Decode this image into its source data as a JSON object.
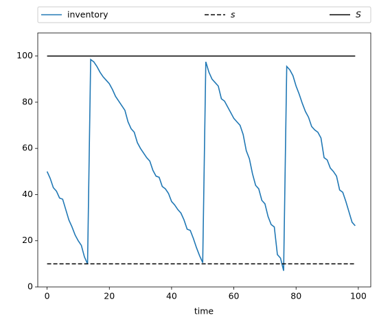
{
  "chart_data": {
    "type": "line",
    "xlabel": "time",
    "series": [
      {
        "name": "inventory",
        "color": "#1f77b4",
        "linestyle": "solid",
        "x": [
          0,
          1,
          2,
          3,
          4,
          5,
          6,
          7,
          8,
          9,
          10,
          11,
          12,
          13,
          14,
          15,
          16,
          17,
          18,
          19,
          20,
          21,
          22,
          23,
          24,
          25,
          26,
          27,
          28,
          29,
          30,
          31,
          32,
          33,
          34,
          35,
          36,
          37,
          38,
          39,
          40,
          41,
          42,
          43,
          44,
          45,
          46,
          47,
          48,
          49,
          50,
          51,
          52,
          53,
          54,
          55,
          56,
          57,
          58,
          59,
          60,
          61,
          62,
          63,
          64,
          65,
          66,
          67,
          68,
          69,
          70,
          71,
          72,
          73,
          74,
          75,
          76,
          77,
          78,
          79,
          80,
          81,
          82,
          83,
          84,
          85,
          86,
          87,
          88,
          89,
          90,
          91,
          92,
          93,
          94,
          95,
          96,
          97,
          98,
          99
        ],
        "values": [
          50,
          47,
          43,
          41.5,
          38.5,
          38,
          33.5,
          29,
          26,
          22.5,
          20,
          18,
          13,
          10,
          98.5,
          97.5,
          95.5,
          93,
          91,
          89.5,
          88,
          85.5,
          82.5,
          80.5,
          78.5,
          76.5,
          71.5,
          68.5,
          67,
          62.5,
          60,
          58,
          56,
          54.5,
          50.5,
          48,
          47.5,
          43.5,
          42.5,
          40.5,
          37,
          35.5,
          33.5,
          32,
          29,
          25,
          24.5,
          21,
          17,
          13.5,
          10.5,
          97.5,
          93,
          90,
          88.5,
          87,
          81.5,
          80.5,
          78,
          75.5,
          73,
          71.5,
          70,
          66,
          59,
          55.5,
          49,
          44,
          42.5,
          37.5,
          36,
          30.5,
          27,
          26,
          14,
          12.5,
          7,
          95.5,
          94,
          91.5,
          87,
          83.5,
          79.5,
          76,
          73.5,
          69.5,
          68,
          67,
          64.5,
          56,
          55,
          51.5,
          50,
          48,
          42,
          41,
          37,
          32.5,
          28,
          26.5
        ]
      },
      {
        "name": "s",
        "color": "#000000",
        "linestyle": "dashed",
        "x": [
          0,
          99
        ],
        "values": [
          10,
          10
        ]
      },
      {
        "name": "S",
        "color": "#000000",
        "linestyle": "solid",
        "x": [
          0,
          99
        ],
        "values": [
          100,
          100
        ]
      }
    ],
    "xlim": [
      -3,
      104
    ],
    "ylim": [
      0,
      110
    ],
    "xticks": [
      0,
      20,
      40,
      60,
      80,
      100
    ],
    "yticks": [
      0,
      20,
      40,
      60,
      80,
      100
    ],
    "legend": "top"
  }
}
